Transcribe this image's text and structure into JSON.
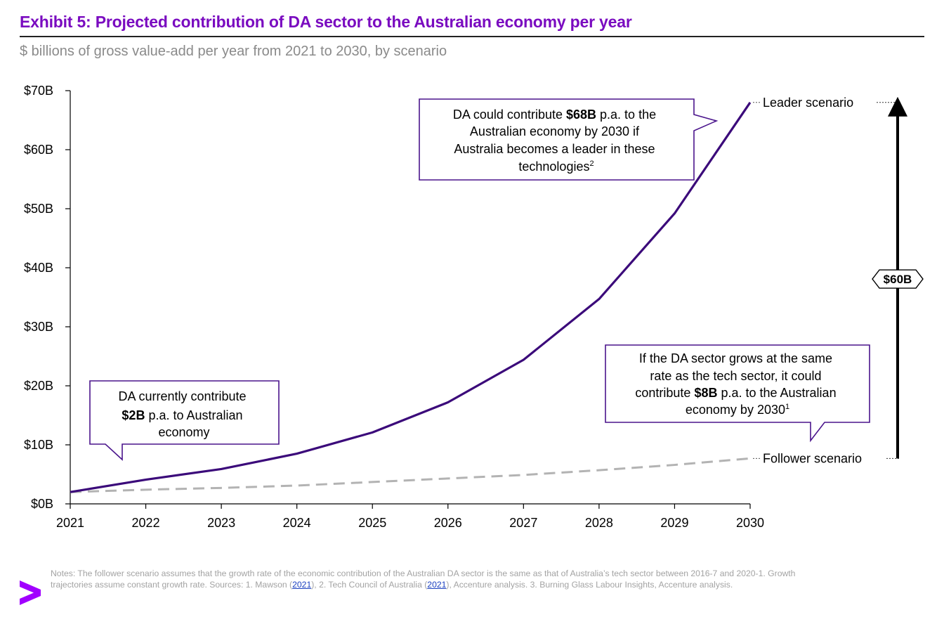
{
  "header": {
    "title": "Exhibit 5: Projected contribution of DA sector to the Australian economy per year",
    "subtitle": "$ billions of gross value-add per year from 2021 to 2030, by scenario"
  },
  "chart_data": {
    "type": "line",
    "x": [
      "2021",
      "2022",
      "2023",
      "2024",
      "2025",
      "2026",
      "2027",
      "2028",
      "2029",
      "2030"
    ],
    "ylim": [
      0,
      70
    ],
    "yticks": [
      0,
      10,
      20,
      30,
      40,
      50,
      60,
      70
    ],
    "ytick_labels": [
      "$0B",
      "$10B",
      "$20B",
      "$30B",
      "$40B",
      "$50B",
      "$60B",
      "$70B"
    ],
    "grid": false,
    "series": [
      {
        "name": "Leader scenario",
        "color": "#3B0A7A",
        "style": "solid",
        "values": [
          2.0,
          4.1,
          5.9,
          8.5,
          12.1,
          17.2,
          24.4,
          34.7,
          49.2,
          68.0
        ]
      },
      {
        "name": "Follower scenario",
        "color": "#B3B3B3",
        "style": "dashed",
        "values": [
          2.0,
          2.4,
          2.7,
          3.1,
          3.7,
          4.3,
          4.9,
          5.7,
          6.6,
          7.7
        ]
      }
    ],
    "gap_label": "$60B",
    "callouts": [
      {
        "id": "current",
        "parts": [
          "DA currently contribute ",
          "$2B",
          " p.a. to Australian economy"
        ]
      },
      {
        "id": "leader",
        "parts": [
          "DA could contribute ",
          "$68B",
          " p.a. to the Australian economy by 2030 if Australia becomes a leader in these technologies",
          "2"
        ]
      },
      {
        "id": "follower",
        "parts": [
          "If the DA sector grows at the same rate as the tech sector, it could contribute ",
          "$8B",
          " p.a. to the Australian economy by 2030",
          "1"
        ]
      }
    ],
    "accent_color": "#7A0BC0"
  },
  "notes": {
    "text1": "Notes: The follower scenario assumes that the growth rate of the economic contribution of the Australian DA sector is the same as that of Australia’s tech sector between 2016-7 and 2020-1. Growth trajectories assume constant growth rate. Sources: 1. Mawson (",
    "link1": "2021",
    "text2": "), 2. Tech Council of Australia (",
    "link2": "2021",
    "text3": "), Accenture analysis. 3. Burning Glass Labour Insights, Accenture analysis."
  }
}
